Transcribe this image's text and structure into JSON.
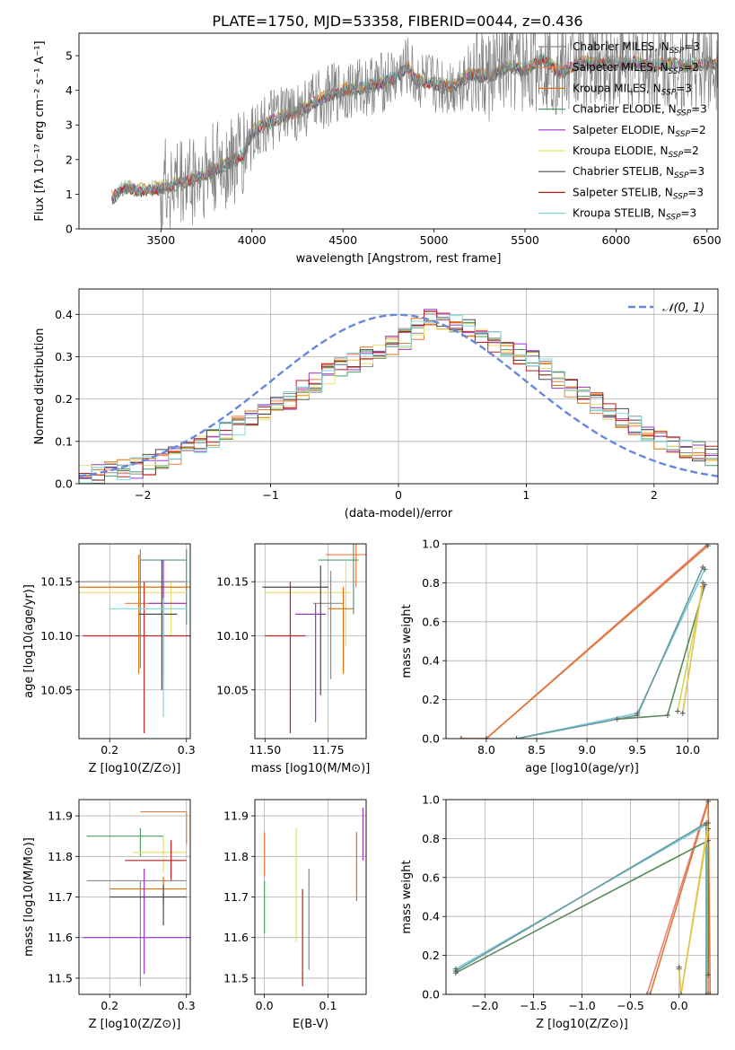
{
  "figure": {
    "title": "PLATE=1750, MJD=53358, FIBERID=0044, z=0.436"
  },
  "legend_labels": [
    "Chabrier MILES, N",
    "Salpeter MILES, N",
    "Kroupa MILES, N",
    "Chabrier ELODIE, N",
    "Salpeter ELODIE, N",
    "Kroupa ELODIE, N",
    "Chabrier STELIB, N",
    "Salpeter STELIB, N",
    "Kroupa STELIB, N"
  ],
  "legend_subscript": "SSP",
  "chart_data": [
    {
      "id": "spectrum",
      "type": "line",
      "xlabel": "wavelength [Angstrom, rest frame]",
      "ylabel": "Flux [fλ 10⁻¹⁷ erg cm⁻² s⁻¹ A⁻¹]",
      "xlim": [
        3050,
        6560
      ],
      "ylim": [
        0,
        5.65
      ],
      "xticks": [
        3500,
        4000,
        4500,
        5000,
        5500,
        6000,
        6500
      ],
      "yticks": [
        0,
        1,
        2,
        3,
        4,
        5
      ],
      "grid": false,
      "legend_position": "top-right",
      "data_curve": {
        "x": [
          3230,
          3300,
          3400,
          3500,
          3600,
          3700,
          3800,
          3900,
          3950,
          4000,
          4100,
          4200,
          4300,
          4400,
          4500,
          4600,
          4700,
          4800,
          4850,
          4900,
          5000,
          5100,
          5200,
          5300,
          5400,
          5500,
          5600,
          5700,
          5800,
          5900,
          6000,
          6100,
          6200,
          6300,
          6400,
          6500
        ],
        "y": [
          0.9,
          1.2,
          1.1,
          1.2,
          1.3,
          1.5,
          1.7,
          2.0,
          2.1,
          2.8,
          3.1,
          3.3,
          3.5,
          3.8,
          4.0,
          4.1,
          4.2,
          4.4,
          4.7,
          4.3,
          4.2,
          4.1,
          4.5,
          4.4,
          4.7,
          4.6,
          4.9,
          4.5,
          4.8,
          4.8,
          4.8,
          4.8,
          4.7,
          4.8,
          4.7,
          4.8
        ]
      },
      "n_ssp": [
        3,
        2,
        3,
        3,
        2,
        2,
        3,
        3,
        3
      ]
    },
    {
      "id": "residuals",
      "type": "line",
      "xlabel": "(data-model)/error",
      "ylabel": "Normed distribution",
      "xlim": [
        -2.5,
        2.5
      ],
      "ylim": [
        0,
        0.46
      ],
      "xticks": [
        -2,
        -1,
        0,
        1,
        2
      ],
      "yticks": [
        0.0,
        0.1,
        0.2,
        0.3,
        0.4
      ],
      "grid": true,
      "legend_position": "top-right",
      "reference_curve": {
        "label": "𝒩(0, 1)",
        "mu": 0,
        "sigma": 1
      },
      "histogram_envelope": {
        "x": [
          -2.5,
          -2.0,
          -1.5,
          -1.0,
          -0.5,
          0.0,
          0.25,
          0.5,
          1.0,
          1.5,
          2.0,
          2.5
        ],
        "y": [
          0.02,
          0.04,
          0.1,
          0.17,
          0.27,
          0.33,
          0.39,
          0.37,
          0.3,
          0.2,
          0.11,
          0.06
        ]
      }
    },
    {
      "id": "age_vs_Z",
      "type": "scatter",
      "xlabel": "Z [log10(Z/Z⊙)]",
      "ylabel": "age  [log10(age/yr)]",
      "xlim": [
        0.16,
        0.305
      ],
      "ylim": [
        10.005,
        10.185
      ],
      "xticks": [
        0.2,
        0.3
      ],
      "yticks": [
        10.05,
        10.1,
        10.15
      ],
      "grid": true,
      "points": [
        {
          "x": 0.27,
          "y": 10.13,
          "xerr": [
            0.05,
            0.03
          ],
          "yerr": [
            0.07,
            0.02
          ]
        },
        {
          "x": 0.3,
          "y": 10.17,
          "xerr": [
            0.06,
            0.0
          ],
          "yerr": [
            0.06,
            0.01
          ]
        },
        {
          "x": 0.28,
          "y": 10.14,
          "xerr": [
            0.12,
            0.02
          ],
          "yerr": [
            0.04,
            0.01
          ]
        },
        {
          "x": 0.245,
          "y": 10.1,
          "xerr": [
            0.08,
            0.06
          ],
          "yerr": [
            0.09,
            0.05
          ]
        },
        {
          "x": 0.24,
          "y": 10.15,
          "xerr": [
            0.08,
            0.06
          ],
          "yerr": [
            0.08,
            0.03
          ]
        },
        {
          "x": 0.238,
          "y": 10.145,
          "xerr": [
            0.08,
            0.07
          ],
          "yerr": [
            0.08,
            0.03
          ]
        },
        {
          "x": 0.27,
          "y": 10.13,
          "xerr": [
            0.02,
            0.03
          ],
          "yerr": [
            0.08,
            0.04
          ]
        },
        {
          "x": 0.268,
          "y": 10.12,
          "xerr": [
            0.03,
            0.02
          ],
          "yerr": [
            0.07,
            0.05
          ]
        },
        {
          "x": 0.27,
          "y": 10.125,
          "xerr": [
            0.07,
            0.03
          ],
          "yerr": [
            0.1,
            0.01
          ]
        }
      ]
    },
    {
      "id": "age_vs_mass",
      "type": "scatter",
      "xlabel": "mass [log10(M/M⊙)]",
      "ylabel": "",
      "xlim": [
        11.46,
        11.9
      ],
      "ylim": [
        10.005,
        10.185
      ],
      "xticks": [
        11.5,
        11.75
      ],
      "yticks": [
        10.05,
        10.1,
        10.15
      ],
      "grid": true,
      "points": [
        {
          "x": 11.86,
          "y": 10.175,
          "xerr": [
            0.12,
            0.04
          ],
          "yerr": [
            0.03,
            0.06
          ]
        },
        {
          "x": 11.85,
          "y": 10.17,
          "xerr": [
            0.14,
            0.02
          ],
          "yerr": [
            0.05,
            0.05
          ]
        },
        {
          "x": 11.82,
          "y": 10.14,
          "xerr": [
            0.32,
            0.02
          ],
          "yerr": [
            0.05,
            0.03
          ]
        },
        {
          "x": 11.6,
          "y": 10.1,
          "xerr": [
            0.1,
            0.06
          ],
          "yerr": [
            0.09,
            0.05
          ]
        },
        {
          "x": 11.76,
          "y": 10.13,
          "xerr": [
            0.07,
            0.05
          ],
          "yerr": [
            0.07,
            0.03
          ]
        },
        {
          "x": 11.81,
          "y": 10.125,
          "xerr": [
            0.06,
            0.04
          ],
          "yerr": [
            0.06,
            0.02
          ]
        },
        {
          "x": 11.7,
          "y": 10.12,
          "xerr": [
            0.08,
            0.04
          ],
          "yerr": [
            0.1,
            0.01
          ]
        },
        {
          "x": 11.72,
          "y": 10.145,
          "xerr": [
            0.23,
            0.03
          ],
          "yerr": [
            0.1,
            0.02
          ]
        }
      ]
    },
    {
      "id": "mass_weight_vs_age",
      "type": "line",
      "xlabel": "age  [log10(age/yr)]",
      "ylabel": "mass weight",
      "xlim": [
        7.6,
        10.3
      ],
      "ylim": [
        0,
        1.0
      ],
      "xticks": [
        8.0,
        8.5,
        9.0,
        9.5,
        10.0
      ],
      "yticks": [
        0.0,
        0.2,
        0.4,
        0.6,
        0.8,
        1.0
      ],
      "grid": true,
      "series": [
        {
          "x": [
            7.75,
            8.0,
            10.2
          ],
          "y": [
            0.0,
            0.0,
            1.0
          ]
        },
        {
          "x": [
            7.75,
            8.0,
            10.2
          ],
          "y": [
            0.0,
            0.0,
            0.99
          ]
        },
        {
          "x": [
            8.3,
            9.5,
            10.17
          ],
          "y": [
            0.0,
            0.13,
            0.87
          ]
        },
        {
          "x": [
            8.3,
            9.5,
            10.15
          ],
          "y": [
            0.0,
            0.12,
            0.88
          ]
        },
        {
          "x": [
            9.3,
            9.8,
            10.17
          ],
          "y": [
            0.1,
            0.12,
            0.79
          ]
        },
        {
          "x": [
            9.9,
            10.15
          ],
          "y": [
            0.14,
            0.78
          ]
        },
        {
          "x": [
            9.95,
            10.15
          ],
          "y": [
            0.13,
            0.8
          ]
        }
      ]
    },
    {
      "id": "mass_vs_Z",
      "type": "scatter",
      "xlabel": "Z [log10(Z/Z⊙)]",
      "ylabel": "mass [log10(M/M⊙)]",
      "xlim": [
        0.16,
        0.305
      ],
      "ylim": [
        11.46,
        11.94
      ],
      "xticks": [
        0.2,
        0.3
      ],
      "yticks": [
        11.5,
        11.6,
        11.7,
        11.8,
        11.9
      ],
      "grid": true,
      "points": [
        {
          "x": 0.3,
          "y": 11.91,
          "xerr": [
            0.06,
            0.0
          ],
          "yerr": [
            0.08,
            0.0
          ]
        },
        {
          "x": 0.24,
          "y": 11.85,
          "xerr": [
            0.07,
            0.03
          ],
          "yerr": [
            0.05,
            0.02
          ]
        },
        {
          "x": 0.27,
          "y": 11.81,
          "xerr": [
            0.04,
            0.03
          ],
          "yerr": [
            0.05,
            0.04
          ]
        },
        {
          "x": 0.28,
          "y": 11.79,
          "xerr": [
            0.06,
            0.02
          ],
          "yerr": [
            0.05,
            0.05
          ]
        },
        {
          "x": 0.24,
          "y": 11.74,
          "xerr": [
            0.07,
            0.06
          ],
          "yerr": [
            0.26,
            0.0
          ]
        },
        {
          "x": 0.27,
          "y": 11.72,
          "xerr": [
            0.07,
            0.03
          ],
          "yerr": [
            0.04,
            0.03
          ]
        },
        {
          "x": 0.245,
          "y": 11.6,
          "xerr": [
            0.08,
            0.06
          ],
          "yerr": [
            0.09,
            0.17
          ]
        },
        {
          "x": 0.27,
          "y": 11.7,
          "xerr": [
            0.07,
            0.03
          ],
          "yerr": [
            0.07,
            0.03
          ]
        }
      ]
    },
    {
      "id": "mass_vs_ebv",
      "type": "scatter",
      "xlabel": "E(B-V)",
      "ylabel": "",
      "xlim": [
        -0.015,
        0.16
      ],
      "ylim": [
        11.46,
        11.94
      ],
      "xticks": [
        0.0,
        0.1
      ],
      "yticks": [
        11.5,
        11.6,
        11.7,
        11.8,
        11.9
      ],
      "grid": true,
      "points": [
        {
          "x": 0.0,
          "y": 11.8,
          "yerr": [
            0.05,
            0.06
          ]
        },
        {
          "x": 0.0,
          "y": 11.7,
          "yerr": [
            0.09,
            0.04
          ]
        },
        {
          "x": 0.05,
          "y": 11.7,
          "yerr": [
            0.11,
            0.17
          ]
        },
        {
          "x": 0.06,
          "y": 11.6,
          "yerr": [
            0.12,
            0.12
          ]
        },
        {
          "x": 0.07,
          "y": 11.65,
          "yerr": [
            0.13,
            0.12
          ]
        },
        {
          "x": 0.145,
          "y": 11.79,
          "yerr": [
            0.1,
            0.07
          ]
        },
        {
          "x": 0.155,
          "y": 11.86,
          "yerr": [
            0.07,
            0.06
          ]
        }
      ]
    },
    {
      "id": "mass_weight_vs_Z",
      "type": "line",
      "xlabel": "Z [log10(Z/Z⊙)]",
      "ylabel": "mass weight",
      "xlim": [
        -2.4,
        0.4
      ],
      "ylim": [
        0,
        1.0
      ],
      "xticks": [
        -2.0,
        -1.5,
        -1.0,
        -0.5,
        0.0
      ],
      "yticks": [
        0.0,
        0.2,
        0.4,
        0.6,
        0.8,
        1.0
      ],
      "grid": true,
      "series": [
        {
          "x": [
            -0.33,
            0.3,
            0.3
          ],
          "y": [
            0.0,
            1.0,
            0.0
          ]
        },
        {
          "x": [
            -0.3,
            0.3,
            0.32
          ],
          "y": [
            0.0,
            0.99,
            0.0
          ]
        },
        {
          "x": [
            -2.3,
            0.28,
            0.28
          ],
          "y": [
            0.13,
            0.87,
            0.0
          ]
        },
        {
          "x": [
            -2.3,
            0.28,
            0.28
          ],
          "y": [
            0.12,
            0.88,
            0.0
          ]
        },
        {
          "x": [
            -2.3,
            0.3,
            0.3
          ],
          "y": [
            0.11,
            0.79,
            0.1
          ]
        },
        {
          "x": [
            0.0,
            0.02,
            0.3
          ],
          "y": [
            0.13,
            0.0,
            0.85
          ]
        },
        {
          "x": [
            0.0,
            0.02,
            0.3
          ],
          "y": [
            0.14,
            0.0,
            0.88
          ]
        }
      ]
    }
  ],
  "series_colors": [
    "#8b8b8b",
    "#f07a3c",
    "#e07000",
    "#4c9e68",
    "#9933cc",
    "#e8e070",
    "#4a4a4a",
    "#bb2020",
    "#7fd8e0"
  ],
  "legend_colors": [
    "#8b8b8b",
    "#f07a3c",
    "#e07000",
    "#4c9e68",
    "#9933cc",
    "#e8e070",
    "#4a4a4a",
    "#bb2020",
    "#7fd8e0"
  ],
  "reference_color": "#6688dd"
}
